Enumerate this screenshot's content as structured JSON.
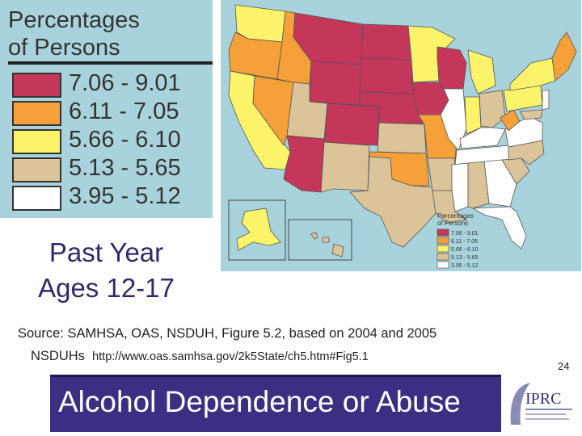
{
  "legend": {
    "title_line1": "Percentages",
    "title_line2": "of Persons",
    "items": [
      {
        "range": "7.06 - 9.01",
        "color": "#c4375a"
      },
      {
        "range": "6.11 - 7.05",
        "color": "#f5a038"
      },
      {
        "range": "5.66 - 6.10",
        "color": "#fbf36a"
      },
      {
        "range": "5.13 - 5.65",
        "color": "#dcc49a"
      },
      {
        "range": "3.95 - 5.12",
        "color": "#ffffff"
      }
    ]
  },
  "map": {
    "inset_legend": {
      "title_line1": "Percentages",
      "title_line2": "of Persons"
    }
  },
  "subtitle": {
    "line1": "Past Year",
    "line2": "Ages 12-17"
  },
  "source": {
    "line1": "Source: SAMHSA, OAS, NSDUH, Figure 5.2, based on 2004 and 2005",
    "line2_prefix": "NSDUHs",
    "url": "http://www.oas.samhsa.gov/2k5State/ch5.htm#Fig5.1"
  },
  "page_number": "24",
  "banner": {
    "title": "Alcohol Dependence or Abuse"
  },
  "logo": {
    "text": "IPRC"
  }
}
